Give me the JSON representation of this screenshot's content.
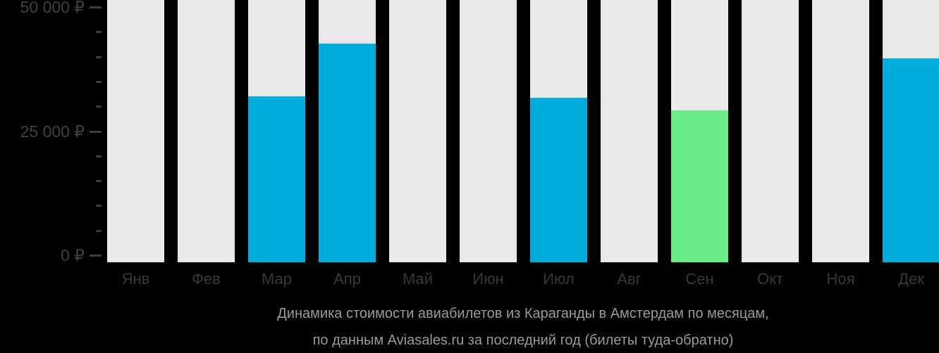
{
  "chart_data": {
    "type": "bar",
    "title_lines": [
      "Динамика стоимости авиабилетов из Караганды в Амстердам по месяцам,",
      "по данным Aviasales.ru за последний год (билеты туда-обратно)"
    ],
    "categories": [
      "Янв",
      "Фев",
      "Мар",
      "Апр",
      "Май",
      "Июн",
      "Июл",
      "Авг",
      "Сен",
      "Окт",
      "Ноя",
      "Дек"
    ],
    "values": [
      null,
      null,
      32000,
      42700,
      null,
      null,
      31700,
      null,
      29200,
      null,
      null,
      39700
    ],
    "bar_roles": [
      "none",
      "none",
      "price",
      "price",
      "none",
      "none",
      "price",
      "none",
      "lowest",
      "none",
      "none",
      "price"
    ],
    "ylim": [
      0,
      50000
    ],
    "yticks_major": [
      0,
      25000,
      50000
    ],
    "ytick_labels": [
      "0 ₽",
      "25 000 ₽",
      "50 000 ₽"
    ],
    "minor_tick_step": 5000,
    "grid": false,
    "legend": null,
    "xlabel": "",
    "ylabel": "",
    "colors": {
      "background": "#000000",
      "bar_background": "#e8e8e8",
      "price_bar": "#00aedb",
      "lowest_price_bar": "#69ee87",
      "axis_tick": "#3c3c3c",
      "axis_text": "#414141",
      "month_text": "#383838",
      "title_text": "#9a9a9a"
    }
  }
}
